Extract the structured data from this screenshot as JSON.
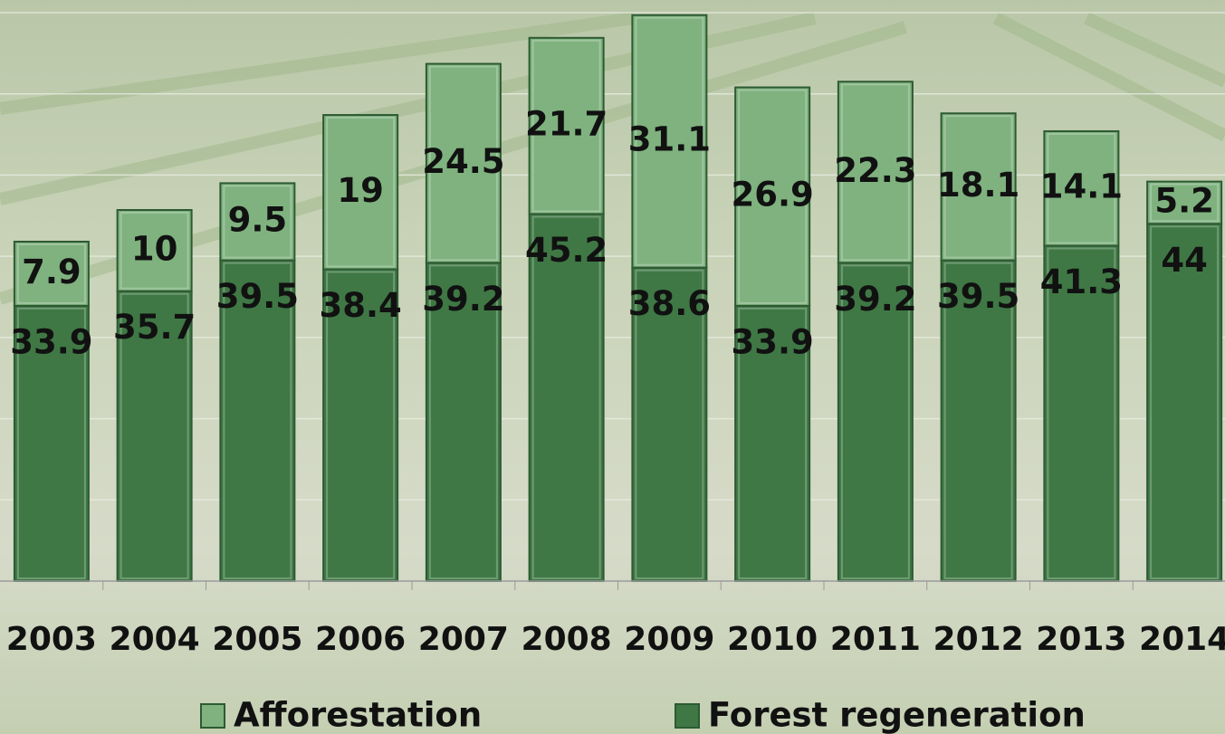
{
  "chart_data": {
    "type": "stacked_bar",
    "categories": [
      "2003",
      "2004",
      "2005",
      "2006",
      "2007",
      "2008",
      "2009",
      "2010",
      "2011",
      "2012",
      "2013",
      "2014"
    ],
    "series": [
      {
        "name": "Afforestation",
        "color": "#7fb27f",
        "values": [
          7.9,
          10,
          9.5,
          19,
          24.5,
          21.7,
          31.1,
          26.9,
          22.3,
          18.1,
          14.1,
          5.2
        ]
      },
      {
        "name": "Forest regeneration",
        "color": "#3f7845",
        "values": [
          33.9,
          35.7,
          39.5,
          38.4,
          39.2,
          45.2,
          38.6,
          33.9,
          39.2,
          39.5,
          41.3,
          44
        ]
      }
    ],
    "ylim": [
      0,
      70
    ],
    "yticks": [
      0,
      10,
      20,
      30,
      40,
      50,
      60,
      70
    ],
    "grid": true
  }
}
